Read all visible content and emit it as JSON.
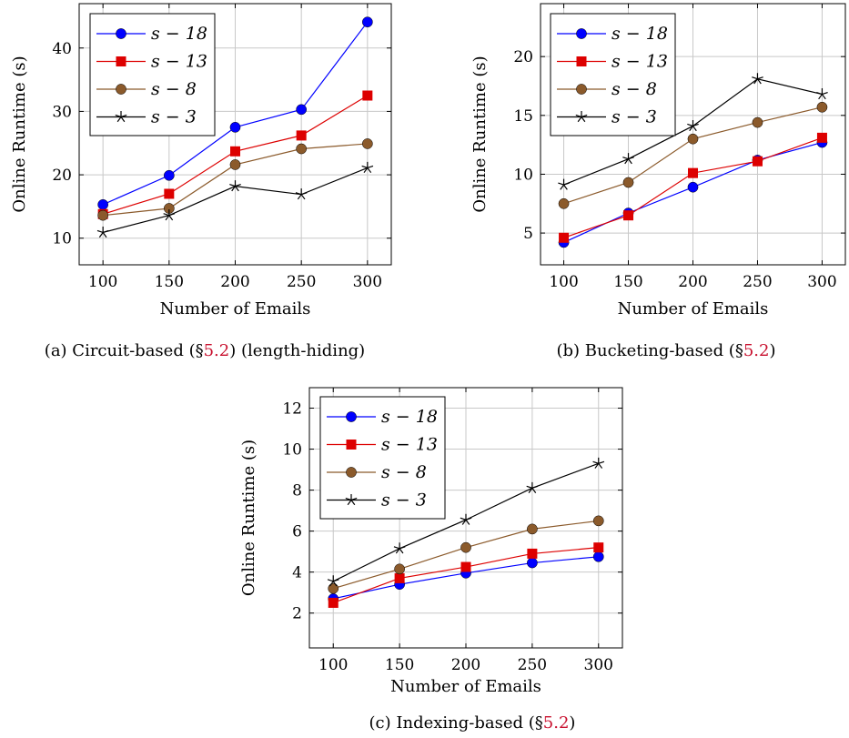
{
  "chart_data": [
    {
      "type": "line",
      "caption": {
        "prefix": "(a) Circuit-based (§",
        "ref": "5.2",
        "suffix": ") (length-hiding)"
      },
      "xlabel": "Number of Emails",
      "ylabel": "Online Runtime (s)",
      "x": [
        100,
        150,
        200,
        250,
        300
      ],
      "xticks": [
        100,
        150,
        200,
        250,
        300
      ],
      "yticks": [
        10,
        20,
        30,
        40
      ],
      "xlim": [
        82,
        318
      ],
      "ylim": [
        5.8,
        47
      ],
      "grid": true,
      "legend": "top-left",
      "series": [
        {
          "name": "s − 18",
          "color": "#0000ff",
          "marker": "circle",
          "values": [
            15.3,
            19.9,
            27.5,
            30.3,
            44.1
          ]
        },
        {
          "name": "s − 13",
          "color": "#dd0000",
          "marker": "square",
          "values": [
            13.8,
            17.0,
            23.7,
            26.2,
            32.5
          ]
        },
        {
          "name": "s − 8",
          "color": "#8b5a2b",
          "marker": "circle",
          "values": [
            13.6,
            14.7,
            21.6,
            24.1,
            24.9
          ]
        },
        {
          "name": "s − 3",
          "color": "#000000",
          "marker": "star",
          "values": [
            10.9,
            13.6,
            18.2,
            16.9,
            21.1
          ]
        }
      ]
    },
    {
      "type": "line",
      "caption": {
        "prefix": "(b) Bucketing-based (§",
        "ref": "5.2",
        "suffix": ")"
      },
      "xlabel": "Number of Emails",
      "ylabel": "Online Runtime (s)",
      "x": [
        100,
        150,
        200,
        250,
        300
      ],
      "xticks": [
        100,
        150,
        200,
        250,
        300
      ],
      "yticks": [
        5,
        10,
        15,
        20
      ],
      "xlim": [
        82,
        318
      ],
      "ylim": [
        2.3,
        24.5
      ],
      "grid": true,
      "legend": "top-left",
      "series": [
        {
          "name": "s − 18",
          "color": "#0000ff",
          "marker": "circle",
          "values": [
            4.2,
            6.7,
            8.9,
            11.2,
            12.7
          ]
        },
        {
          "name": "s − 13",
          "color": "#dd0000",
          "marker": "square",
          "values": [
            4.6,
            6.5,
            10.1,
            11.1,
            13.1
          ]
        },
        {
          "name": "s − 8",
          "color": "#8b5a2b",
          "marker": "circle",
          "values": [
            7.5,
            9.3,
            13.0,
            14.4,
            15.7
          ]
        },
        {
          "name": "s − 3",
          "color": "#000000",
          "marker": "star",
          "values": [
            9.1,
            11.3,
            14.1,
            18.1,
            16.8
          ]
        }
      ]
    },
    {
      "type": "line",
      "caption": {
        "prefix": "(c) Indexing-based (§",
        "ref": "5.2",
        "suffix": ")"
      },
      "xlabel": "Number of Emails",
      "ylabel": "Online Runtime (s)",
      "x": [
        100,
        150,
        200,
        250,
        300
      ],
      "xticks": [
        100,
        150,
        200,
        250,
        300
      ],
      "yticks": [
        2,
        4,
        6,
        8,
        10,
        12
      ],
      "xlim": [
        82,
        318
      ],
      "ylim": [
        0.3,
        13
      ],
      "grid": true,
      "legend": "top-left",
      "series": [
        {
          "name": "s − 18",
          "color": "#0000ff",
          "marker": "circle",
          "values": [
            2.7,
            3.4,
            3.95,
            4.45,
            4.75
          ]
        },
        {
          "name": "s − 13",
          "color": "#dd0000",
          "marker": "square",
          "values": [
            2.5,
            3.7,
            4.25,
            4.9,
            5.2
          ]
        },
        {
          "name": "s − 8",
          "color": "#8b5a2b",
          "marker": "circle",
          "values": [
            3.2,
            4.15,
            5.2,
            6.1,
            6.5
          ]
        },
        {
          "name": "s − 3",
          "color": "#000000",
          "marker": "star",
          "values": [
            3.55,
            5.15,
            6.55,
            8.1,
            9.3
          ]
        }
      ]
    }
  ]
}
